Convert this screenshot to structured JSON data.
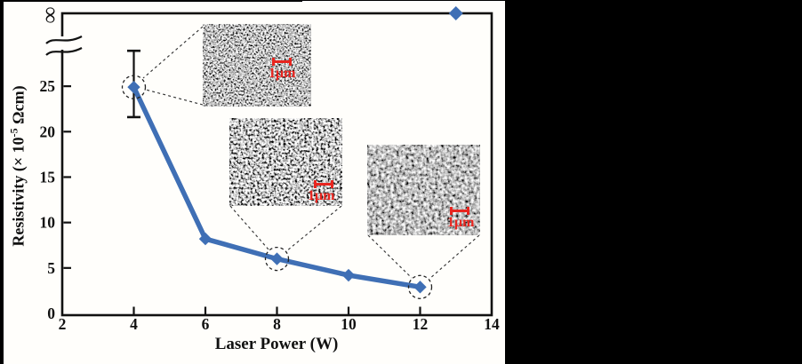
{
  "figure": {
    "x_axis_label": "Laser Power (W)",
    "y_axis_label_prefix": "Resistivity (× 10",
    "y_axis_label_sup": "-5",
    "y_axis_label_suffix": " Ωcm)",
    "infinity_label": "∞"
  },
  "chart_data": {
    "type": "line",
    "title": "",
    "xlabel": "Laser Power (W)",
    "ylabel": "Resistivity (× 10⁻⁵ Ωcm)",
    "series": [
      {
        "name": "Resistivity",
        "x": [
          4,
          6,
          8,
          10,
          12
        ],
        "y": [
          24.9,
          8.2,
          6.0,
          4.2,
          2.9
        ]
      }
    ],
    "isolated_point": {
      "x": 13,
      "y": "infinity"
    },
    "error_bar": {
      "x": 4,
      "y": 24.9,
      "y_low": 21.6,
      "y_high": 28.9
    },
    "x_ticks": [
      2,
      4,
      6,
      8,
      10,
      12,
      14
    ],
    "y_ticks": [
      0,
      5,
      10,
      15,
      20,
      25
    ],
    "xlim": [
      2,
      14
    ],
    "ylim": [
      0,
      30
    ],
    "y_axis_break": true,
    "y_axis_top_label": "∞",
    "grid": false,
    "legend": "none",
    "marker": "diamond",
    "circled_points_x": [
      4,
      8,
      12
    ]
  },
  "insets": [
    {
      "name": "sem-micrograph-4w",
      "scale_label": "1μm"
    },
    {
      "name": "sem-micrograph-8w",
      "scale_label": "1μm"
    },
    {
      "name": "sem-micrograph-12w",
      "scale_label": "1μm"
    }
  ],
  "colors": {
    "line": "#3f6fb5",
    "scalebar_red": "#e8251f",
    "frame": "#111111",
    "background": "#000000",
    "panel": "#ffffff"
  }
}
